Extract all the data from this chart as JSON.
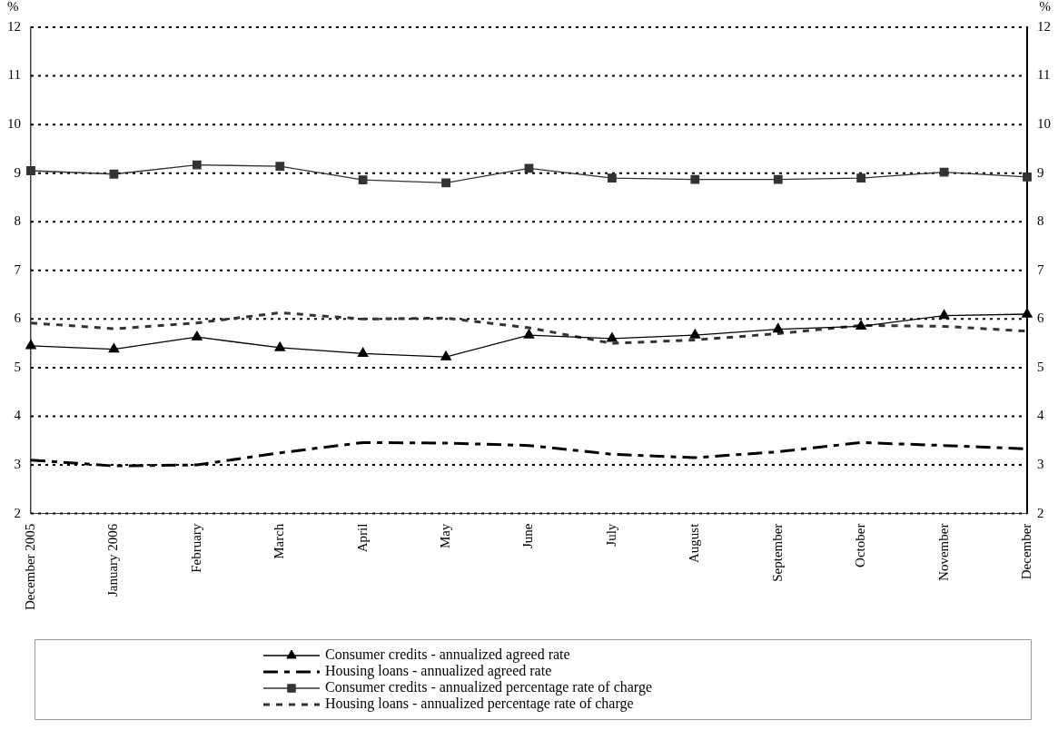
{
  "chart_data": {
    "type": "line",
    "ylabel": "%",
    "y2label": "%",
    "categories": [
      "December 2005",
      "January 2006",
      "February",
      "March",
      "April",
      "May",
      "June",
      "July",
      "August",
      "September",
      "October",
      "November",
      "December"
    ],
    "series": [
      {
        "name": "Consumer credits - annualized agreed rate",
        "color": "#000000",
        "marker": "triangle",
        "line_style": "solid",
        "values": [
          5.45,
          5.38,
          5.63,
          5.41,
          5.29,
          5.22,
          5.67,
          5.6,
          5.67,
          5.79,
          5.85,
          6.07,
          6.1
        ]
      },
      {
        "name": "Housing loans - annualized agreed rate",
        "color": "#000000",
        "marker": "none",
        "line_style": "dashed",
        "values": [
          3.1,
          2.98,
          3.0,
          3.25,
          3.46,
          3.45,
          3.4,
          3.22,
          3.15,
          3.27,
          3.46,
          3.4,
          3.33
        ]
      },
      {
        "name": "Consumer credits - annualized percentage rate of charge",
        "color": "#333333",
        "marker": "square",
        "line_style": "solid",
        "values": [
          9.05,
          8.98,
          9.17,
          9.14,
          8.86,
          8.8,
          9.1,
          8.9,
          8.87,
          8.87,
          8.9,
          9.02,
          8.92
        ]
      },
      {
        "name": "Housing loans - annualized percentage rate of charge",
        "color": "#333333",
        "marker": "none",
        "line_style": "dotted",
        "values": [
          5.92,
          5.8,
          5.92,
          6.13,
          6.0,
          6.02,
          5.82,
          5.5,
          5.57,
          5.7,
          5.87,
          5.85,
          5.75
        ]
      }
    ],
    "ylim": [
      2,
      12
    ],
    "yticks": [
      2,
      3,
      4,
      5,
      6,
      7,
      8,
      9,
      10,
      11,
      12
    ],
    "y2lim": [
      2,
      12
    ],
    "y2ticks": [
      2,
      3,
      4,
      5,
      6,
      7,
      8,
      9,
      10,
      11,
      12
    ],
    "grid": "y",
    "legend": "bottom"
  }
}
